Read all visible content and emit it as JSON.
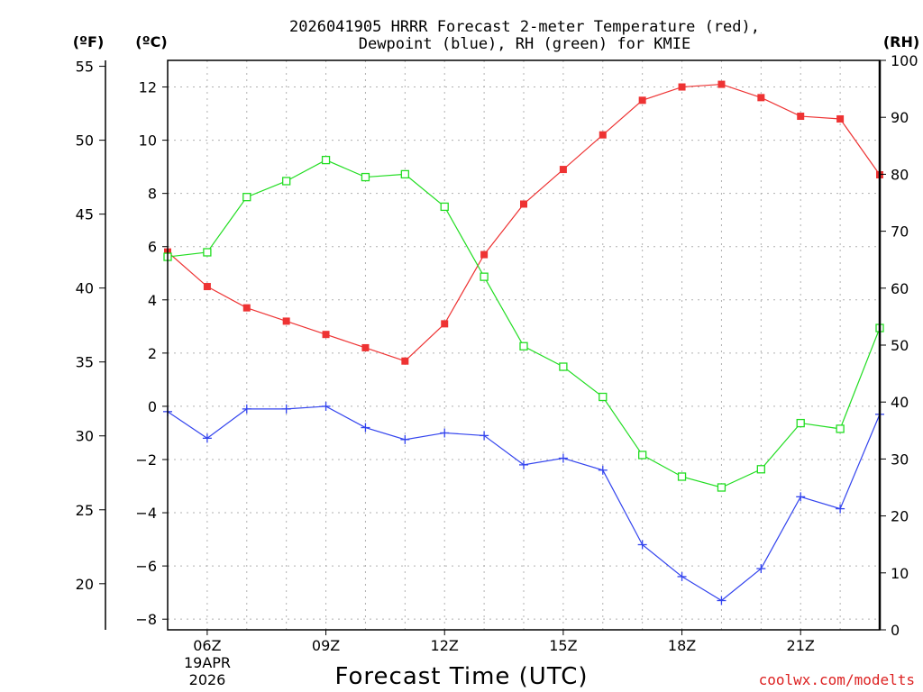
{
  "chart_data": {
    "type": "line",
    "title_line1": "2026041905 HRRR Forecast 2-meter Temperature (red),",
    "title_line2": "Dewpoint (blue), RH (green) for KMIE",
    "xlabel": "Forecast Time (UTC)",
    "x": [
      5,
      6,
      7,
      8,
      9,
      10,
      11,
      12,
      13,
      14,
      15,
      16,
      17,
      18,
      19,
      20,
      21,
      22,
      23
    ],
    "xlim": [
      5,
      23
    ],
    "x_ticks": [
      6,
      9,
      12,
      15,
      18,
      21
    ],
    "x_tick_labels": [
      "06Z",
      "09Z",
      "12Z",
      "15Z",
      "18Z",
      "21Z"
    ],
    "date_line1": "19APR",
    "date_line2": "2026",
    "left_axis_c": {
      "unit": "(ºC)",
      "ylim": [
        -8.4,
        13.0
      ],
      "ticks": [
        12,
        10,
        8,
        6,
        4,
        2,
        0,
        -2,
        -4,
        -6,
        -8
      ],
      "tick_labels": [
        "12",
        "10",
        "8",
        "6",
        "4",
        "2",
        "0",
        "−2",
        "−4",
        "−6",
        "−8"
      ]
    },
    "left_axis_f": {
      "unit": "(ºF)",
      "ticks": [
        55,
        50,
        45,
        40,
        35,
        30,
        25,
        20
      ],
      "tick_labels": [
        "55",
        "50",
        "45",
        "40",
        "35",
        "30",
        "25",
        "20"
      ]
    },
    "right_axis_rh": {
      "unit": "(RH)",
      "ylim": [
        0,
        100
      ],
      "ticks": [
        100,
        90,
        80,
        70,
        60,
        50,
        40,
        30,
        20,
        10,
        0
      ],
      "tick_labels": [
        "100",
        "90",
        "80",
        "70",
        "60",
        "50",
        "40",
        "30",
        "20",
        "10",
        "0"
      ]
    },
    "series": [
      {
        "name": "Temperature",
        "axis": "c",
        "color": "#ee3333",
        "marker": "filled-square",
        "values": [
          5.8,
          4.5,
          3.7,
          3.2,
          2.7,
          2.2,
          1.7,
          3.1,
          5.7,
          7.6,
          8.9,
          10.2,
          11.5,
          12.0,
          12.1,
          11.6,
          10.9,
          10.8,
          8.7
        ]
      },
      {
        "name": "Dewpoint",
        "axis": "c",
        "color": "#3344ee",
        "marker": "plus",
        "values": [
          -0.2,
          -1.2,
          -0.1,
          -0.1,
          0.0,
          -0.8,
          -1.25,
          -1.0,
          -1.1,
          -2.2,
          -1.95,
          -2.4,
          -5.2,
          -6.4,
          -7.3,
          -6.1,
          -3.4,
          -3.85,
          -0.3
        ]
      },
      {
        "name": "RH",
        "axis": "rh",
        "color": "#22dd22",
        "marker": "open-square",
        "values": [
          65.5,
          66.3,
          76.0,
          78.8,
          82.5,
          79.5,
          80.0,
          74.3,
          62.0,
          49.8,
          46.2,
          40.9,
          30.7,
          26.9,
          25.0,
          28.2,
          36.3,
          35.3,
          53.0
        ]
      }
    ]
  },
  "credit": "coolwx.com/modelts",
  "credit_color": "#dd2222"
}
